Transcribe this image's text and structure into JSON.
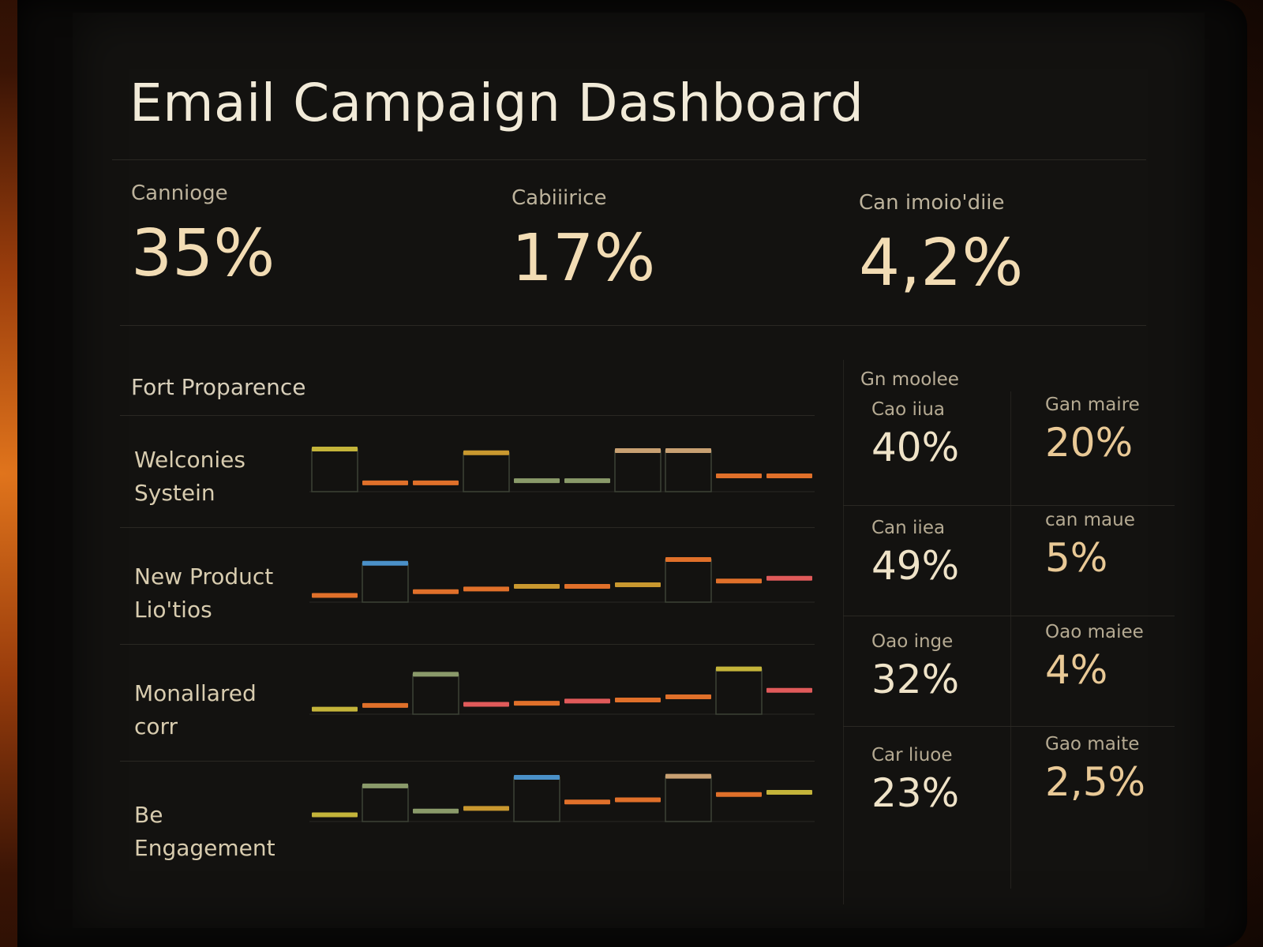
{
  "dashboard": {
    "title": "Email Campaign Dashboard",
    "kpis": [
      {
        "label": "Cannioge",
        "value": "35%"
      },
      {
        "label": "Cabiiirice",
        "value": "17%"
      },
      {
        "label": "Can imoio'diie",
        "value": "4,2%"
      }
    ],
    "section_title": "Fort Proparence",
    "rows": [
      {
        "label_line1": "Welconies",
        "label_line2": "Systein"
      },
      {
        "label_line1": "New Product",
        "label_line2": "Lio'tios"
      },
      {
        "label_line1": "Monallared",
        "label_line2": "corr"
      },
      {
        "label_line1": "Be",
        "label_line2": "Engagement"
      }
    ],
    "side_title": "Gn moolee",
    "stats": [
      {
        "label": "Cao iiua",
        "value": "40%"
      },
      {
        "label": "Gan maire",
        "value": "20%"
      },
      {
        "label": "Can iiea",
        "value": "49%"
      },
      {
        "label": "can maue",
        "value": "5%"
      },
      {
        "label": "Oao inge",
        "value": "32%"
      },
      {
        "label": "Oao maiee",
        "value": "4%"
      },
      {
        "label": "Car liuoe",
        "value": "23%"
      },
      {
        "label": "Gao maite",
        "value": "2,5%"
      }
    ]
  },
  "colors": {
    "yellow": "#c4b43a",
    "orange": "#e0702a",
    "gold": "#c9982f",
    "sage": "#8a9a6a",
    "blue": "#4a90c8",
    "pink": "#e05a5a",
    "tan": "#c8a072"
  },
  "chart_data": [
    {
      "type": "bar",
      "segments": [
        {
          "color": "yellow",
          "level": 0.75
        },
        {
          "color": "orange",
          "level": 0.12
        },
        {
          "color": "orange",
          "level": 0.12
        },
        {
          "color": "gold",
          "level": 0.68
        },
        {
          "color": "sage",
          "level": 0.16
        },
        {
          "color": "sage",
          "level": 0.16
        },
        {
          "color": "tan",
          "level": 0.72
        },
        {
          "color": "tan",
          "level": 0.72
        },
        {
          "color": "orange",
          "level": 0.25
        },
        {
          "color": "orange",
          "level": 0.25
        }
      ]
    },
    {
      "type": "bar",
      "segments": [
        {
          "color": "orange",
          "level": 0.08
        },
        {
          "color": "blue",
          "level": 0.68
        },
        {
          "color": "orange",
          "level": 0.15
        },
        {
          "color": "orange",
          "level": 0.2
        },
        {
          "color": "gold",
          "level": 0.25
        },
        {
          "color": "orange",
          "level": 0.25
        },
        {
          "color": "gold",
          "level": 0.28
        },
        {
          "color": "orange",
          "level": 0.75
        },
        {
          "color": "orange",
          "level": 0.35
        },
        {
          "color": "pink",
          "level": 0.4
        }
      ]
    },
    {
      "type": "bar",
      "segments": [
        {
          "color": "yellow",
          "level": 0.05
        },
        {
          "color": "orange",
          "level": 0.12
        },
        {
          "color": "sage",
          "level": 0.7
        },
        {
          "color": "pink",
          "level": 0.14
        },
        {
          "color": "orange",
          "level": 0.16
        },
        {
          "color": "pink",
          "level": 0.2
        },
        {
          "color": "orange",
          "level": 0.22
        },
        {
          "color": "orange",
          "level": 0.28
        },
        {
          "color": "yellow",
          "level": 0.8
        },
        {
          "color": "pink",
          "level": 0.4
        }
      ]
    },
    {
      "type": "bar",
      "segments": [
        {
          "color": "yellow",
          "level": 0.08
        },
        {
          "color": "sage",
          "level": 0.62
        },
        {
          "color": "sage",
          "level": 0.15
        },
        {
          "color": "gold",
          "level": 0.2
        },
        {
          "color": "blue",
          "level": 0.78
        },
        {
          "color": "orange",
          "level": 0.32
        },
        {
          "color": "orange",
          "level": 0.36
        },
        {
          "color": "tan",
          "level": 0.8
        },
        {
          "color": "orange",
          "level": 0.46
        },
        {
          "color": "yellow",
          "level": 0.5
        }
      ]
    }
  ]
}
